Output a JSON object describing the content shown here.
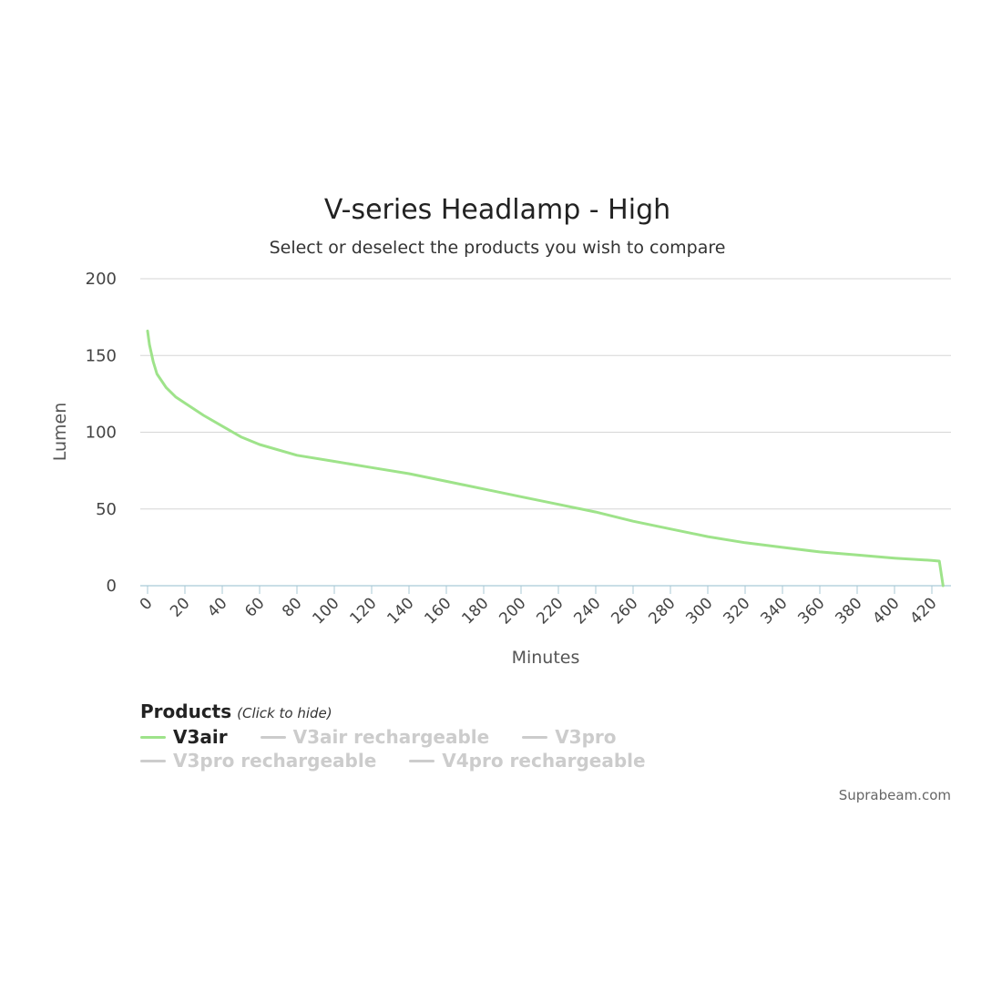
{
  "chart_data": {
    "type": "line",
    "title": "V-series Headlamp - High",
    "subtitle": "Select or deselect the products you wish to compare",
    "xlabel": "Minutes",
    "ylabel": "Lumen",
    "xlim": [
      0,
      425
    ],
    "ylim": [
      0,
      200
    ],
    "x_ticks": [
      "0",
      "20",
      "40",
      "60",
      "80",
      "100",
      "120",
      "140",
      "160",
      "180",
      "200",
      "220",
      "240",
      "260",
      "280",
      "300",
      "320",
      "340",
      "360",
      "380",
      "400",
      "420"
    ],
    "y_ticks": [
      "0",
      "50",
      "100",
      "150",
      "200"
    ],
    "grid": true,
    "legend_position": "bottom-left",
    "series": [
      {
        "name": "V3air",
        "color": "#9ee38a",
        "visible": true,
        "x": [
          0,
          1,
          3,
          5,
          10,
          15,
          20,
          30,
          40,
          50,
          60,
          80,
          100,
          120,
          140,
          160,
          180,
          200,
          220,
          240,
          260,
          280,
          300,
          320,
          340,
          360,
          380,
          400,
          420,
          424,
          426
        ],
        "y": [
          166,
          157,
          146,
          138,
          129,
          123,
          119,
          111,
          104,
          97,
          92,
          85,
          81,
          77,
          73,
          68,
          63,
          58,
          53,
          48,
          42,
          37,
          32,
          28,
          25,
          22,
          20,
          18,
          16.5,
          16,
          0
        ]
      },
      {
        "name": "V3air rechargeable",
        "color": "#cccccc",
        "visible": false
      },
      {
        "name": "V3pro",
        "color": "#cccccc",
        "visible": false
      },
      {
        "name": "V3pro rechargeable",
        "color": "#cccccc",
        "visible": false
      },
      {
        "name": "V4pro rechargeable",
        "color": "#cccccc",
        "visible": false
      }
    ]
  },
  "legend": {
    "heading": "Products",
    "hint": "(Click to hide)"
  },
  "credit": "Suprabeam.com"
}
